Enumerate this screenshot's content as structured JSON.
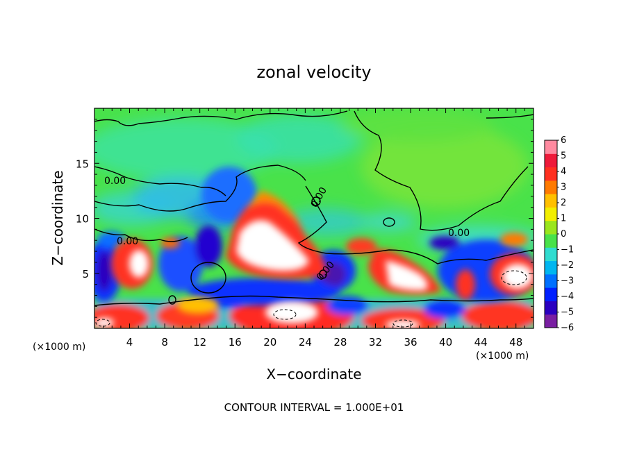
{
  "chart_data": {
    "type": "heatmap",
    "title": "zonal velocity",
    "xlabel": "X−coordinate",
    "ylabel": "Z−coordinate",
    "x_unit_left": "(×1000 m)",
    "x_unit_right": "(×1000 m)",
    "xlim": [
      0,
      50
    ],
    "ylim": [
      0,
      20
    ],
    "x_ticks": [
      4,
      8,
      12,
      16,
      20,
      24,
      28,
      32,
      36,
      40,
      44,
      48
    ],
    "x_tick_labels": [
      "4",
      "8",
      "12",
      "16",
      "20",
      "24",
      "28",
      "32",
      "36",
      "40",
      "44",
      "48"
    ],
    "y_ticks": [
      5,
      10,
      15
    ],
    "y_tick_labels": [
      "5",
      "10",
      "15"
    ],
    "colorbar": {
      "min": -6,
      "max": 6,
      "tick_values": [
        6,
        5,
        4,
        3,
        2,
        1,
        0,
        -1,
        -2,
        -3,
        -4,
        -5,
        -6
      ],
      "tick_labels": [
        "6",
        "5",
        "4",
        "3",
        "2",
        "1",
        "0",
        "−1",
        "−2",
        "−3",
        "−4",
        "−5",
        "−6"
      ],
      "colors": [
        "#7a1fa2",
        "#2a00c0",
        "#0020ff",
        "#0070ff",
        "#00b6f0",
        "#30dcd0",
        "#49e24a",
        "#9ae61d",
        "#f2ee00",
        "#ffc000",
        "#ff7a00",
        "#ff3020",
        "#ee1a3a",
        "#ff8aa0"
      ]
    },
    "contour_interval_text": "CONTOUR INTERVAL = 1.000E+01",
    "contour_labels": [
      "0.00",
      "0.00",
      "0.00",
      "0.00",
      "0.00"
    ],
    "field_features": [
      {
        "x": 19,
        "y": 7,
        "value": 12
      },
      {
        "x": 34,
        "y": 5,
        "value": 10
      },
      {
        "x": 4.5,
        "y": 6,
        "value": 9
      },
      {
        "x": 21,
        "y": 1.5,
        "value": 10
      },
      {
        "x": 47,
        "y": 5,
        "value": 9
      },
      {
        "x": 40.5,
        "y": 7.5,
        "value": -5
      },
      {
        "x": 27.5,
        "y": 4,
        "value": -5
      },
      {
        "x": 0.8,
        "y": 4.5,
        "value": -5
      },
      {
        "x": 10,
        "y": 6.5,
        "value": -4
      },
      {
        "x": 13,
        "y": 10.5,
        "value": -3
      },
      {
        "x": 25,
        "y": 15,
        "value": -2
      }
    ]
  }
}
